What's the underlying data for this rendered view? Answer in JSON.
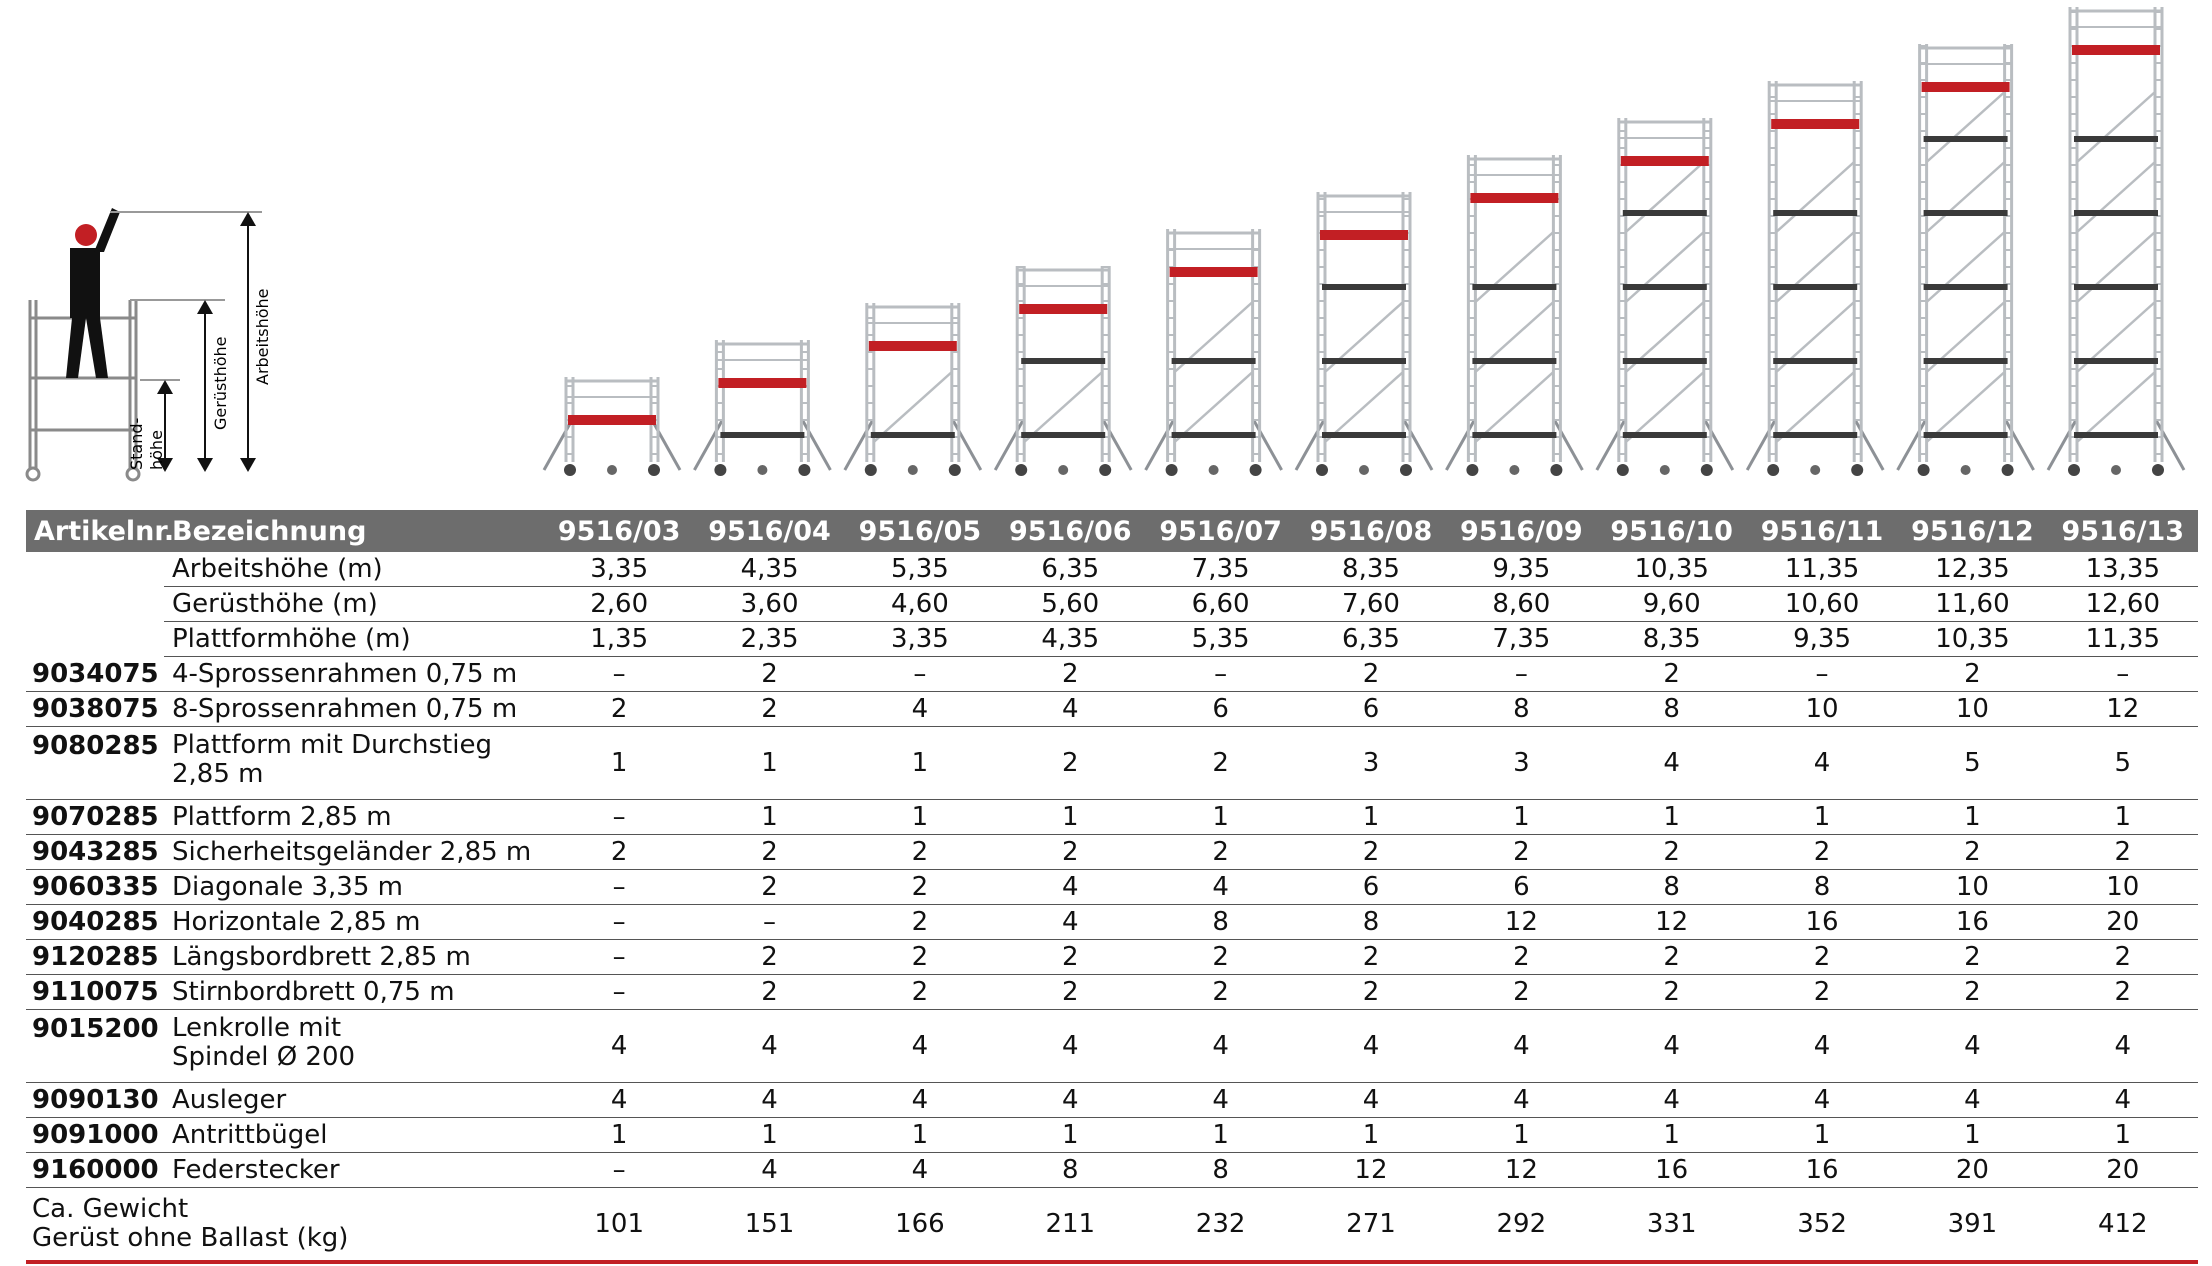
{
  "legend": {
    "standhoehe": "Stand-\nhöhe",
    "geruesthoehe": "Gerüsthöhe",
    "arbeitshoehe": "Arbeitshöhe"
  },
  "colors": {
    "header_bg": "#6d6d6d",
    "platform_red": "#c21f24",
    "frame_grey": "#b9bdc1"
  },
  "table": {
    "header": {
      "artikelnr": "Artikelnr.",
      "bezeichnung": "Bezeichnung"
    },
    "models": [
      "9516/03",
      "9516/04",
      "9516/05",
      "9516/06",
      "9516/07",
      "9516/08",
      "9516/09",
      "9516/10",
      "9516/11",
      "9516/12",
      "9516/13"
    ],
    "rows": [
      {
        "art": "",
        "desc": "Arbeitshöhe (m)",
        "vals": [
          "3,35",
          "4,35",
          "5,35",
          "6,35",
          "7,35",
          "8,35",
          "9,35",
          "10,35",
          "11,35",
          "12,35",
          "13,35"
        ]
      },
      {
        "art": "",
        "desc": "Gerüsthöhe (m)",
        "vals": [
          "2,60",
          "3,60",
          "4,60",
          "5,60",
          "6,60",
          "7,60",
          "8,60",
          "9,60",
          "10,60",
          "11,60",
          "12,60"
        ]
      },
      {
        "art": "",
        "desc": "Plattformhöhe (m)",
        "vals": [
          "1,35",
          "2,35",
          "3,35",
          "4,35",
          "5,35",
          "6,35",
          "7,35",
          "8,35",
          "9,35",
          "10,35",
          "11,35"
        ]
      },
      {
        "art": "9034075",
        "desc": "4-Sprossenrahmen 0,75 m",
        "vals": [
          "–",
          "2",
          "–",
          "2",
          "–",
          "2",
          "–",
          "2",
          "–",
          "2",
          "–"
        ]
      },
      {
        "art": "9038075",
        "desc": "8-Sprossenrahmen 0,75 m",
        "vals": [
          "2",
          "2",
          "4",
          "4",
          "6",
          "6",
          "8",
          "8",
          "10",
          "10",
          "12"
        ]
      },
      {
        "art": "9080285",
        "desc": "Plattform mit Durchstieg",
        "desc2": "2,85 m",
        "vals": [
          "1",
          "1",
          "1",
          "2",
          "2",
          "3",
          "3",
          "4",
          "4",
          "5",
          "5"
        ]
      },
      {
        "art": "9070285",
        "desc": "Plattform 2,85 m",
        "vals": [
          "–",
          "1",
          "1",
          "1",
          "1",
          "1",
          "1",
          "1",
          "1",
          "1",
          "1"
        ]
      },
      {
        "art": "9043285",
        "desc": "Sicherheitsgeländer 2,85 m",
        "vals": [
          "2",
          "2",
          "2",
          "2",
          "2",
          "2",
          "2",
          "2",
          "2",
          "2",
          "2"
        ]
      },
      {
        "art": "9060335",
        "desc": "Diagonale 3,35 m",
        "vals": [
          "–",
          "2",
          "2",
          "4",
          "4",
          "6",
          "6",
          "8",
          "8",
          "10",
          "10"
        ]
      },
      {
        "art": "9040285",
        "desc": "Horizontale 2,85 m",
        "vals": [
          "–",
          "–",
          "2",
          "4",
          "8",
          "8",
          "12",
          "12",
          "16",
          "16",
          "20"
        ]
      },
      {
        "art": "9120285",
        "desc": "Längsbordbrett 2,85 m",
        "vals": [
          "–",
          "2",
          "2",
          "2",
          "2",
          "2",
          "2",
          "2",
          "2",
          "2",
          "2"
        ]
      },
      {
        "art": "9110075",
        "desc": "Stirnbordbrett 0,75 m",
        "vals": [
          "–",
          "2",
          "2",
          "2",
          "2",
          "2",
          "2",
          "2",
          "2",
          "2",
          "2"
        ]
      },
      {
        "art": "9015200",
        "desc": "Lenkrolle mit",
        "desc2": "Spindel Ø 200",
        "vals": [
          "4",
          "4",
          "4",
          "4",
          "4",
          "4",
          "4",
          "4",
          "4",
          "4",
          "4"
        ]
      },
      {
        "art": "9090130",
        "desc": "Ausleger",
        "vals": [
          "4",
          "4",
          "4",
          "4",
          "4",
          "4",
          "4",
          "4",
          "4",
          "4",
          "4"
        ]
      },
      {
        "art": "9091000",
        "desc": "Antrittbügel",
        "vals": [
          "1",
          "1",
          "1",
          "1",
          "1",
          "1",
          "1",
          "1",
          "1",
          "1",
          "1"
        ]
      },
      {
        "art": "9160000",
        "desc": "Federstecker",
        "vals": [
          "–",
          "4",
          "4",
          "8",
          "8",
          "12",
          "12",
          "16",
          "16",
          "20",
          "20"
        ]
      }
    ],
    "weight": {
      "label1": "Ca. Gewicht",
      "label2": "Gerüst ohne Ballast (kg)",
      "vals": [
        "101",
        "151",
        "166",
        "211",
        "232",
        "271",
        "292",
        "331",
        "352",
        "391",
        "412"
      ]
    }
  }
}
